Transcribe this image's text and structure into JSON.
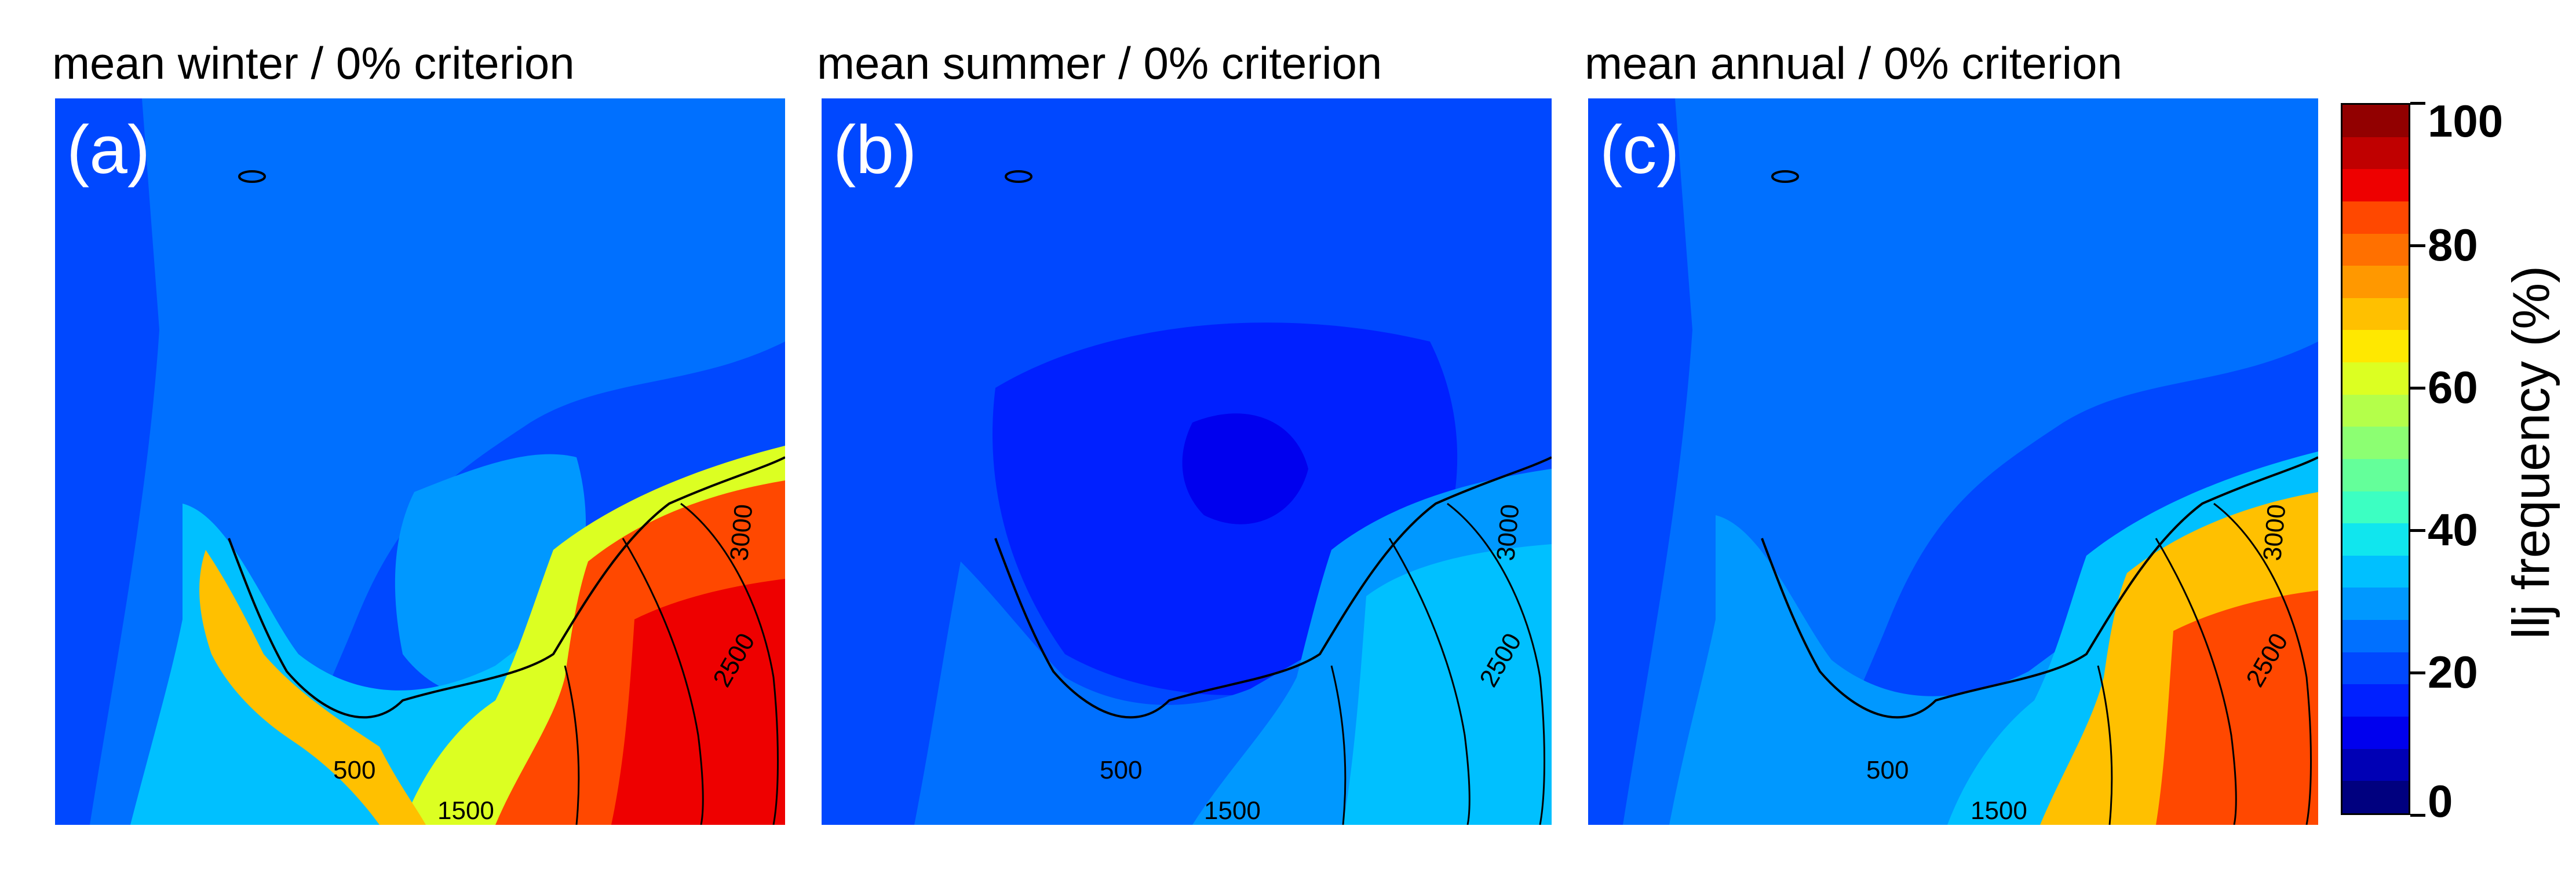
{
  "panels": [
    {
      "id": "a",
      "title": "mean winter / 0% criterion",
      "label": "(a)",
      "intensity": "high"
    },
    {
      "id": "b",
      "title": "mean summer / 0% criterion",
      "label": "(b)",
      "intensity": "low"
    },
    {
      "id": "c",
      "title": "mean annual / 0% criterion",
      "label": "(c)",
      "intensity": "medium"
    }
  ],
  "contour_labels": [
    "500",
    "1500",
    "2500",
    "3000",
    "500",
    "1500",
    "2500",
    "3000"
  ],
  "colorbar": {
    "title": "llj frequency (%)",
    "ticks": [
      "0",
      "20",
      "40",
      "60",
      "80",
      "100"
    ],
    "min": 0,
    "max": 100,
    "colors": [
      "#00007f",
      "#0000b5",
      "#0000ee",
      "#0020ff",
      "#0048ff",
      "#0070ff",
      "#0098ff",
      "#00c0ff",
      "#10e6ee",
      "#3cffc2",
      "#64ff9a",
      "#8cff72",
      "#b4ff4a",
      "#dcff22",
      "#ffe800",
      "#ffc000",
      "#ff9800",
      "#ff7000",
      "#ff4800",
      "#ee0000",
      "#c00000",
      "#920000"
    ]
  },
  "colors": {
    "ocean": "#0048ff",
    "ocean_light": "#0070ff",
    "coast_band": "#00c0ff",
    "land_high": "#ff4800",
    "land_red": "#ee0000",
    "contour": "#000000"
  }
}
